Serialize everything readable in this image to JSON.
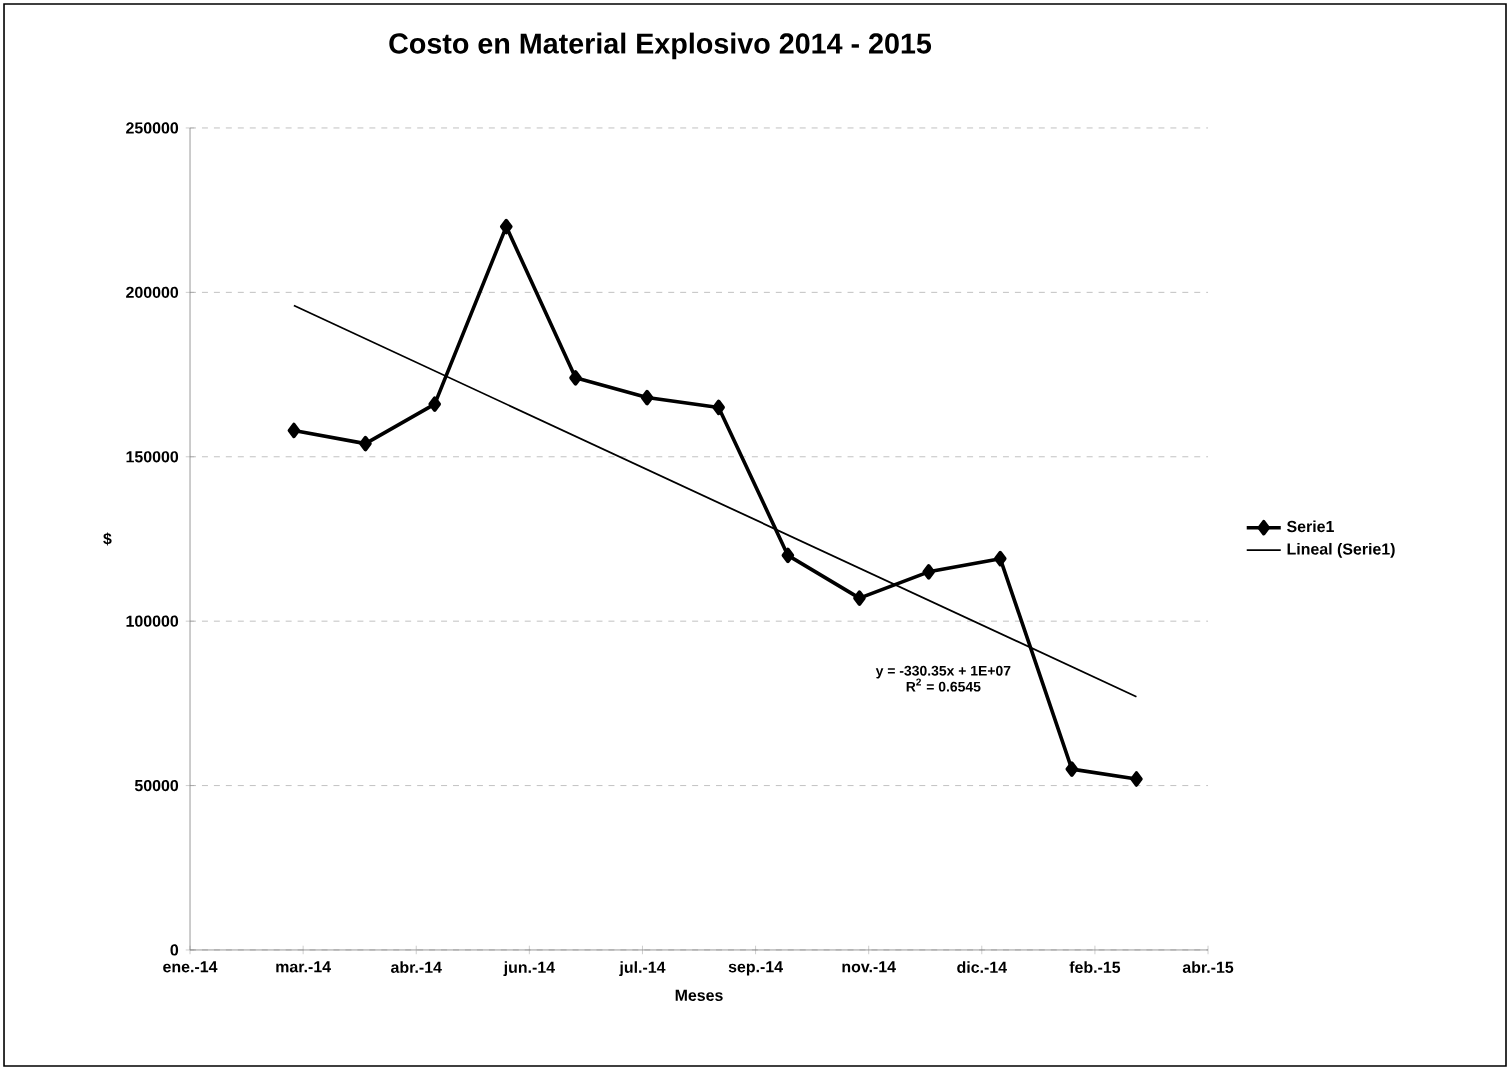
{
  "chart_data": {
    "type": "line",
    "title": "Costo en Material Explosivo 2014 - 2015",
    "xlabel": "Meses",
    "ylabel": "$",
    "x": [
      "2014-03-01",
      "2014-04-01",
      "2014-05-01",
      "2014-06-01",
      "2014-07-01",
      "2014-08-01",
      "2014-09-01",
      "2014-10-01",
      "2014-11-01",
      "2014-12-01",
      "2015-01-01",
      "2015-02-01",
      "2015-03-01"
    ],
    "series": [
      {
        "name": "Serie1",
        "color": "#000000",
        "marker": "diamond",
        "values": [
          158000,
          154000,
          166000,
          220000,
          174000,
          168000,
          165000,
          120000,
          107000,
          115000,
          119000,
          55000,
          52000
        ]
      },
      {
        "name": "Lineal (Serie1)",
        "color": "#000000",
        "marker": "none",
        "x": [
          "2014-03-01",
          "2015-03-01"
        ],
        "values": [
          196000,
          77000
        ]
      }
    ],
    "xlim": [
      "2014-01-15",
      "2015-04-01"
    ],
    "xticks": [
      {
        "value": "2014-01-15",
        "label": "ene.-14"
      },
      {
        "value": "2014-03-05",
        "label": "mar.-14"
      },
      {
        "value": "2014-04-23",
        "label": "abr.-14"
      },
      {
        "value": "2014-06-11",
        "label": "jun.-14"
      },
      {
        "value": "2014-07-30",
        "label": "jul.-14"
      },
      {
        "value": "2014-09-17",
        "label": "sep.-14"
      },
      {
        "value": "2014-11-05",
        "label": "nov.-14"
      },
      {
        "value": "2014-12-24",
        "label": "dic.-14"
      },
      {
        "value": "2015-02-11",
        "label": "feb.-15"
      },
      {
        "value": "2015-04-01",
        "label": "abr.-15"
      }
    ],
    "ylim": [
      0,
      250000
    ],
    "yticks": [
      0,
      50000,
      100000,
      150000,
      200000,
      250000
    ],
    "grid": "y",
    "legend": "right",
    "line_style": "solid",
    "annotations": [
      "y = -330.35x + 1E+07",
      "R$^{2}$ = 0.6545"
    ]
  }
}
